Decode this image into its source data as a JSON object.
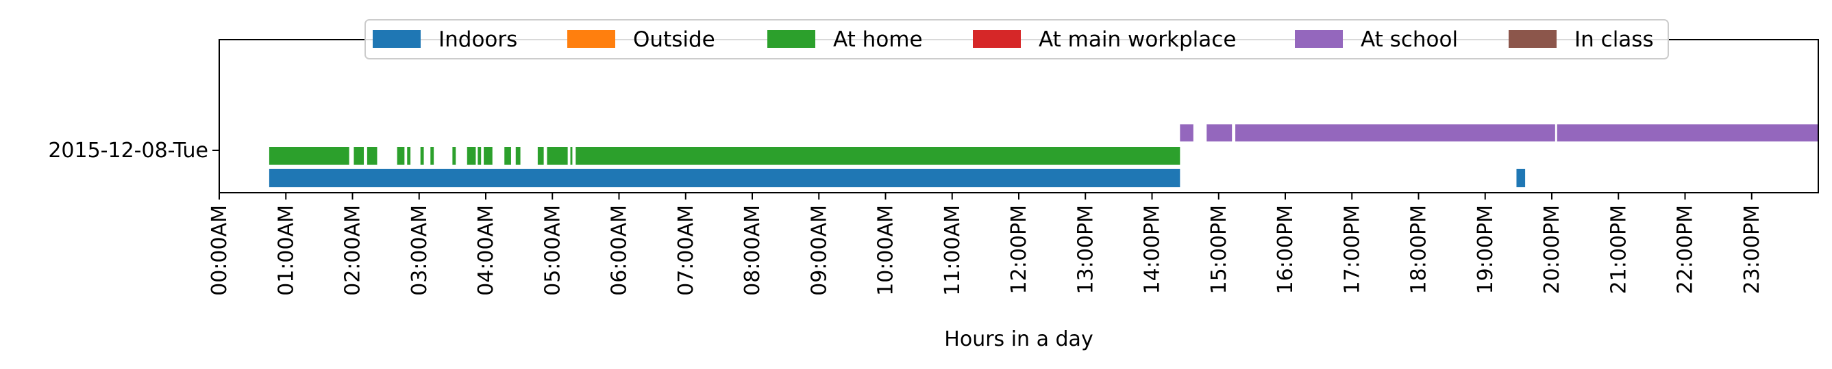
{
  "chart_data": {
    "type": "timeline",
    "title": "",
    "xlabel": "Hours in a day",
    "ylabel": "",
    "xlim": [
      0,
      24
    ],
    "x_tick_labels": [
      "00:00AM",
      "01:00AM",
      "02:00AM",
      "03:00AM",
      "04:00AM",
      "05:00AM",
      "06:00AM",
      "07:00AM",
      "08:00AM",
      "09:00AM",
      "10:00AM",
      "11:00AM",
      "12:00PM",
      "13:00PM",
      "14:00PM",
      "15:00PM",
      "16:00PM",
      "17:00PM",
      "18:00PM",
      "19:00PM",
      "20:00PM",
      "21:00PM",
      "22:00PM",
      "23:00PM"
    ],
    "y_tick_labels": [
      "2015-12-08-Tue"
    ],
    "legend_position": "top-center",
    "grid": false,
    "series": [
      {
        "name": "Indoors",
        "color": "#1f77b4",
        "intervals": [
          [
            0.75,
            14.42
          ],
          [
            19.47,
            19.6
          ]
        ]
      },
      {
        "name": "Outside",
        "color": "#ff7f0e",
        "intervals": []
      },
      {
        "name": "At home",
        "color": "#2ca02c",
        "intervals": [
          [
            0.75,
            1.95
          ],
          [
            2.02,
            2.17
          ],
          [
            2.22,
            2.37
          ],
          [
            2.67,
            2.78
          ],
          [
            2.82,
            2.87
          ],
          [
            3.02,
            3.07
          ],
          [
            3.17,
            3.22
          ],
          [
            3.5,
            3.55
          ],
          [
            3.72,
            3.85
          ],
          [
            3.88,
            3.93
          ],
          [
            3.97,
            4.1
          ],
          [
            4.28,
            4.38
          ],
          [
            4.45,
            4.52
          ],
          [
            4.78,
            4.87
          ],
          [
            4.92,
            5.23
          ],
          [
            5.27,
            5.3
          ],
          [
            5.35,
            14.42
          ]
        ]
      },
      {
        "name": "At main workplace",
        "color": "#d62728",
        "intervals": []
      },
      {
        "name": "At school",
        "color": "#9467bd",
        "intervals": [
          [
            14.42,
            14.62
          ],
          [
            14.82,
            15.2
          ],
          [
            15.25,
            20.05
          ],
          [
            20.08,
            24.0
          ]
        ]
      },
      {
        "name": "In class",
        "color": "#8c564b",
        "intervals": []
      }
    ]
  }
}
